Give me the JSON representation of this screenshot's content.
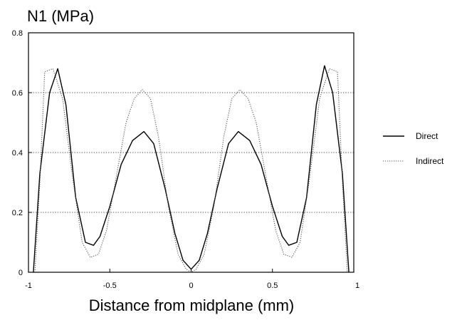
{
  "chart_data": {
    "type": "line",
    "title": "",
    "ylabel": "N1 (MPa)",
    "xlabel": "Distance from midplane (mm)",
    "xlim": [
      -1,
      1
    ],
    "ylim": [
      0,
      0.8
    ],
    "xticks": [
      "-1",
      "-0.5",
      "0",
      "0.5",
      "1"
    ],
    "yticks": [
      "0",
      "0.2",
      "0.4",
      "0.6",
      "0.8"
    ],
    "grid": "horizontal dotted at 0.2, 0.4, 0.6",
    "legend_position": "right",
    "series": [
      {
        "name": "Direct",
        "style": "solid",
        "color": "#000000",
        "points": [
          [
            -0.97,
            0.0
          ],
          [
            -0.93,
            0.33
          ],
          [
            -0.87,
            0.6
          ],
          [
            -0.82,
            0.68
          ],
          [
            -0.77,
            0.56
          ],
          [
            -0.71,
            0.25
          ],
          [
            -0.65,
            0.1
          ],
          [
            -0.6,
            0.09
          ],
          [
            -0.56,
            0.12
          ],
          [
            -0.5,
            0.22
          ],
          [
            -0.43,
            0.36
          ],
          [
            -0.36,
            0.44
          ],
          [
            -0.29,
            0.47
          ],
          [
            -0.23,
            0.43
          ],
          [
            -0.16,
            0.28
          ],
          [
            -0.1,
            0.13
          ],
          [
            -0.05,
            0.04
          ],
          [
            0.0,
            0.01
          ],
          [
            0.05,
            0.04
          ],
          [
            0.1,
            0.13
          ],
          [
            0.16,
            0.28
          ],
          [
            0.23,
            0.43
          ],
          [
            0.29,
            0.47
          ],
          [
            0.36,
            0.44
          ],
          [
            0.43,
            0.36
          ],
          [
            0.5,
            0.22
          ],
          [
            0.56,
            0.12
          ],
          [
            0.6,
            0.09
          ],
          [
            0.65,
            0.1
          ],
          [
            0.71,
            0.25
          ],
          [
            0.77,
            0.56
          ],
          [
            0.82,
            0.69
          ],
          [
            0.87,
            0.6
          ],
          [
            0.93,
            0.33
          ],
          [
            0.97,
            0.0
          ]
        ]
      },
      {
        "name": "Indirect",
        "style": "dotted",
        "color": "#555555",
        "points": [
          [
            -0.96,
            0.0
          ],
          [
            -0.93,
            0.3
          ],
          [
            -0.9,
            0.67
          ],
          [
            -0.85,
            0.68
          ],
          [
            -0.79,
            0.58
          ],
          [
            -0.73,
            0.32
          ],
          [
            -0.67,
            0.1
          ],
          [
            -0.62,
            0.05
          ],
          [
            -0.57,
            0.06
          ],
          [
            -0.52,
            0.14
          ],
          [
            -0.46,
            0.32
          ],
          [
            -0.4,
            0.5
          ],
          [
            -0.35,
            0.58
          ],
          [
            -0.3,
            0.61
          ],
          [
            -0.25,
            0.58
          ],
          [
            -0.2,
            0.45
          ],
          [
            -0.14,
            0.22
          ],
          [
            -0.08,
            0.06
          ],
          [
            -0.03,
            0.01
          ],
          [
            0.0,
            0.0
          ],
          [
            0.03,
            0.01
          ],
          [
            0.08,
            0.06
          ],
          [
            0.14,
            0.22
          ],
          [
            0.2,
            0.45
          ],
          [
            0.25,
            0.58
          ],
          [
            0.3,
            0.61
          ],
          [
            0.35,
            0.58
          ],
          [
            0.4,
            0.5
          ],
          [
            0.46,
            0.32
          ],
          [
            0.52,
            0.14
          ],
          [
            0.57,
            0.06
          ],
          [
            0.62,
            0.05
          ],
          [
            0.67,
            0.1
          ],
          [
            0.73,
            0.32
          ],
          [
            0.79,
            0.58
          ],
          [
            0.85,
            0.68
          ],
          [
            0.9,
            0.67
          ],
          [
            0.93,
            0.3
          ],
          [
            0.96,
            0.0
          ]
        ]
      }
    ]
  }
}
